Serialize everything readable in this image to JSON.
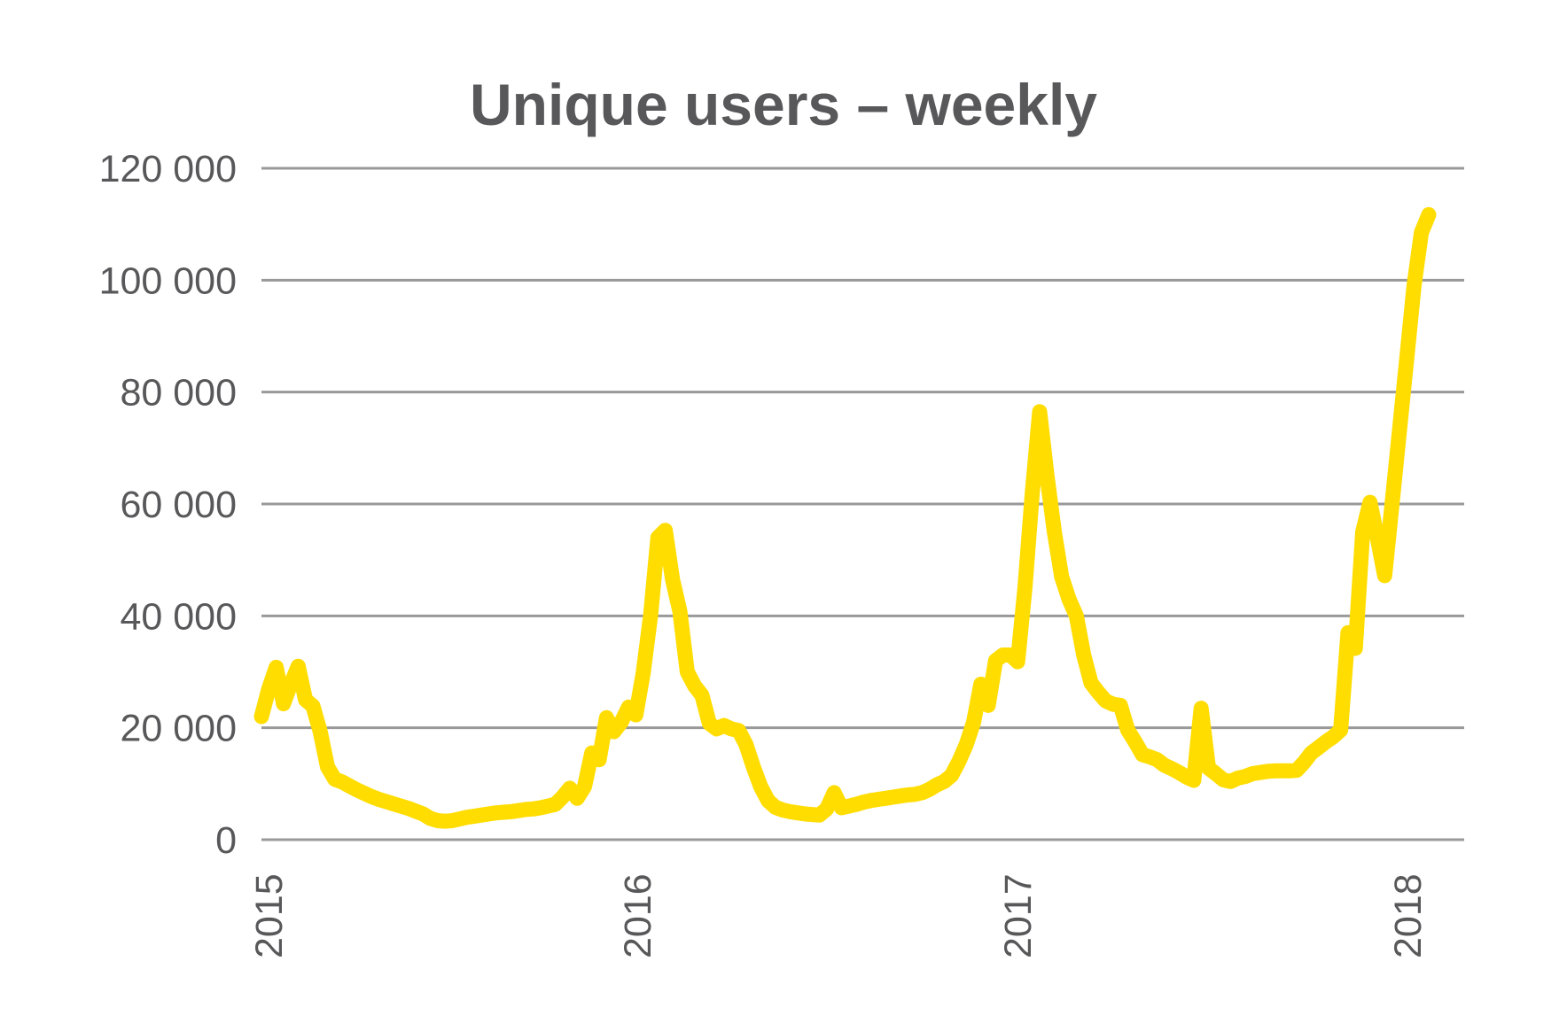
{
  "chart_data": {
    "type": "line",
    "title": "Unique users – weekly",
    "xlabel": "",
    "ylabel": "",
    "ylim": [
      0,
      120000
    ],
    "grid": "horizontal",
    "legend": "none",
    "x_tick_labels": [
      "2015",
      "2016",
      "2017",
      "2018"
    ],
    "y_tick_values": [
      0,
      20000,
      40000,
      60000,
      80000,
      100000,
      120000
    ],
    "y_tick_labels": [
      "0",
      "20 000",
      "40 000",
      "60 000",
      "80 000",
      "100 000",
      "120 000"
    ],
    "colors": {
      "line": "#FFDD00",
      "grid": "#999999",
      "text": "#58585A",
      "background": "#FFFFFF"
    },
    "series": [
      {
        "name": "Unique users",
        "interval": "weekly",
        "values": [
          22000,
          27000,
          30800,
          24300,
          27800,
          31000,
          25000,
          23900,
          19300,
          13000,
          10800,
          10300,
          9600,
          8900,
          8300,
          7700,
          7200,
          6800,
          6400,
          6000,
          5600,
          5100,
          4600,
          3800,
          3400,
          3300,
          3400,
          3700,
          4000,
          4200,
          4400,
          4600,
          4800,
          4900,
          5000,
          5200,
          5400,
          5500,
          5700,
          6000,
          6300,
          7600,
          9200,
          7400,
          9500,
          15500,
          14300,
          21800,
          19300,
          21000,
          23700,
          22300,
          29800,
          40000,
          54000,
          55300,
          46500,
          40800,
          30000,
          27500,
          25800,
          20800,
          19800,
          20400,
          19800,
          19500,
          17000,
          13000,
          9500,
          7000,
          5800,
          5300,
          5000,
          4800,
          4600,
          4500,
          4400,
          5500,
          8400,
          5700,
          6000,
          6300,
          6700,
          7000,
          7200,
          7400,
          7600,
          7800,
          8000,
          8100,
          8400,
          9000,
          9800,
          10400,
          11500,
          14000,
          17000,
          21000,
          27800,
          24000,
          32000,
          33000,
          33000,
          31800,
          45000,
          62000,
          76500,
          65000,
          55000,
          47000,
          43000,
          40000,
          33000,
          28000,
          26300,
          24800,
          24200,
          24000,
          19600,
          17500,
          15200,
          14800,
          14300,
          13300,
          12700,
          12000,
          11200,
          10600,
          23500,
          12800,
          11800,
          10700,
          10400,
          11000,
          11300,
          11800,
          12000,
          12200,
          12300,
          12300,
          12300,
          12400,
          13800,
          15500,
          16500,
          17500,
          18400,
          19600,
          37000,
          34200,
          55000,
          60300,
          54000,
          47200,
          60000,
          73000,
          86000,
          99000,
          108500,
          111700
        ]
      }
    ]
  }
}
